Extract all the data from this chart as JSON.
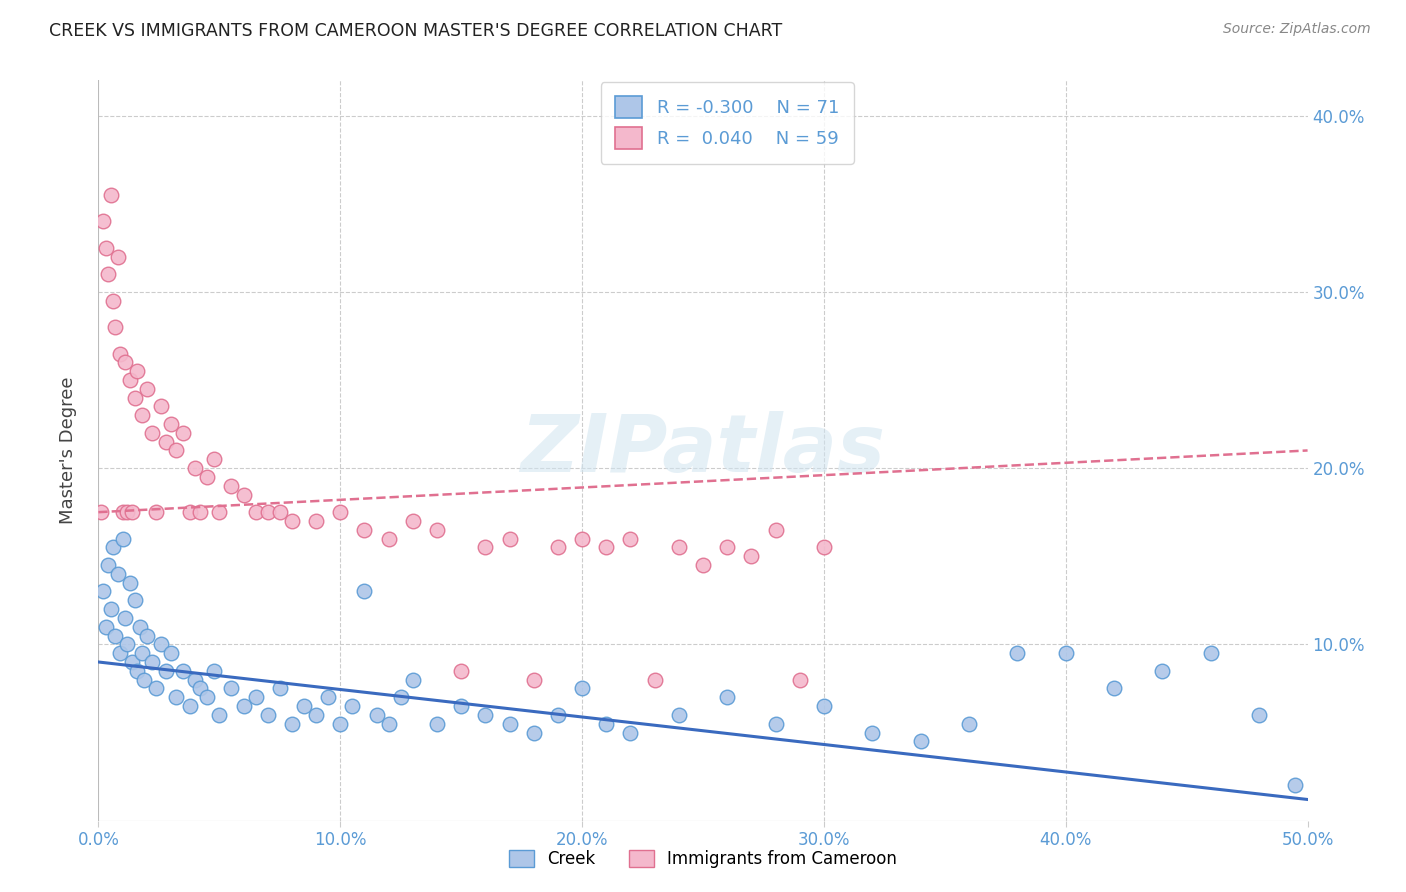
{
  "title": "CREEK VS IMMIGRANTS FROM CAMEROON MASTER'S DEGREE CORRELATION CHART",
  "source": "Source: ZipAtlas.com",
  "ylabel": "Master's Degree",
  "xlim": [
    0.0,
    0.5
  ],
  "ylim": [
    0.0,
    0.42
  ],
  "xticks": [
    0.0,
    0.1,
    0.2,
    0.3,
    0.4,
    0.5
  ],
  "xtick_labels": [
    "0.0%",
    "10.0%",
    "20.0%",
    "30.0%",
    "40.0%",
    "50.0%"
  ],
  "yticks_right": [
    0.1,
    0.2,
    0.3,
    0.4
  ],
  "ytick_labels_right": [
    "10.0%",
    "20.0%",
    "30.0%",
    "40.0%"
  ],
  "creek_color": "#aec6e8",
  "creek_edge_color": "#5b9bd5",
  "cameroon_color": "#f4b8cc",
  "cameroon_edge_color": "#e07090",
  "creek_R": -0.3,
  "creek_N": 71,
  "cameroon_R": 0.04,
  "cameroon_N": 59,
  "creek_line_color": "#3a6abf",
  "cameroon_line_color": "#e07090",
  "legend_label_creek": "Creek",
  "legend_label_cameroon": "Immigrants from Cameroon",
  "watermark": "ZIPatlas",
  "title_color": "#222222",
  "axis_color": "#5b9bd5",
  "creek_scatter_x": [
    0.002,
    0.003,
    0.004,
    0.005,
    0.006,
    0.007,
    0.008,
    0.009,
    0.01,
    0.011,
    0.012,
    0.013,
    0.014,
    0.015,
    0.016,
    0.017,
    0.018,
    0.019,
    0.02,
    0.022,
    0.024,
    0.026,
    0.028,
    0.03,
    0.032,
    0.035,
    0.038,
    0.04,
    0.042,
    0.045,
    0.048,
    0.05,
    0.055,
    0.06,
    0.065,
    0.07,
    0.075,
    0.08,
    0.085,
    0.09,
    0.095,
    0.1,
    0.105,
    0.11,
    0.115,
    0.12,
    0.125,
    0.13,
    0.14,
    0.15,
    0.16,
    0.17,
    0.18,
    0.19,
    0.2,
    0.21,
    0.22,
    0.24,
    0.26,
    0.28,
    0.3,
    0.32,
    0.34,
    0.36,
    0.38,
    0.4,
    0.42,
    0.44,
    0.46,
    0.48,
    0.495
  ],
  "creek_scatter_y": [
    0.13,
    0.11,
    0.145,
    0.12,
    0.155,
    0.105,
    0.14,
    0.095,
    0.16,
    0.115,
    0.1,
    0.135,
    0.09,
    0.125,
    0.085,
    0.11,
    0.095,
    0.08,
    0.105,
    0.09,
    0.075,
    0.1,
    0.085,
    0.095,
    0.07,
    0.085,
    0.065,
    0.08,
    0.075,
    0.07,
    0.085,
    0.06,
    0.075,
    0.065,
    0.07,
    0.06,
    0.075,
    0.055,
    0.065,
    0.06,
    0.07,
    0.055,
    0.065,
    0.13,
    0.06,
    0.055,
    0.07,
    0.08,
    0.055,
    0.065,
    0.06,
    0.055,
    0.05,
    0.06,
    0.075,
    0.055,
    0.05,
    0.06,
    0.07,
    0.055,
    0.065,
    0.05,
    0.045,
    0.055,
    0.095,
    0.095,
    0.075,
    0.085,
    0.095,
    0.06,
    0.02
  ],
  "cameroon_scatter_x": [
    0.001,
    0.002,
    0.003,
    0.004,
    0.005,
    0.006,
    0.007,
    0.008,
    0.009,
    0.01,
    0.011,
    0.012,
    0.013,
    0.014,
    0.015,
    0.016,
    0.018,
    0.02,
    0.022,
    0.024,
    0.026,
    0.028,
    0.03,
    0.032,
    0.035,
    0.038,
    0.04,
    0.042,
    0.045,
    0.048,
    0.05,
    0.055,
    0.06,
    0.065,
    0.07,
    0.075,
    0.08,
    0.09,
    0.1,
    0.11,
    0.12,
    0.13,
    0.14,
    0.15,
    0.16,
    0.17,
    0.18,
    0.19,
    0.2,
    0.21,
    0.22,
    0.23,
    0.24,
    0.25,
    0.26,
    0.27,
    0.28,
    0.29,
    0.3
  ],
  "cameroon_scatter_y": [
    0.175,
    0.34,
    0.325,
    0.31,
    0.355,
    0.295,
    0.28,
    0.32,
    0.265,
    0.175,
    0.26,
    0.175,
    0.25,
    0.175,
    0.24,
    0.255,
    0.23,
    0.245,
    0.22,
    0.175,
    0.235,
    0.215,
    0.225,
    0.21,
    0.22,
    0.175,
    0.2,
    0.175,
    0.195,
    0.205,
    0.175,
    0.19,
    0.185,
    0.175,
    0.175,
    0.175,
    0.17,
    0.17,
    0.175,
    0.165,
    0.16,
    0.17,
    0.165,
    0.085,
    0.155,
    0.16,
    0.08,
    0.155,
    0.16,
    0.155,
    0.16,
    0.08,
    0.155,
    0.145,
    0.155,
    0.15,
    0.165,
    0.08,
    0.155
  ],
  "creek_line_x0": 0.0,
  "creek_line_x1": 0.5,
  "creek_line_y0": 0.09,
  "creek_line_y1": 0.012,
  "cameroon_line_x0": 0.0,
  "cameroon_line_x1": 0.5,
  "cameroon_line_y0": 0.175,
  "cameroon_line_y1": 0.21
}
